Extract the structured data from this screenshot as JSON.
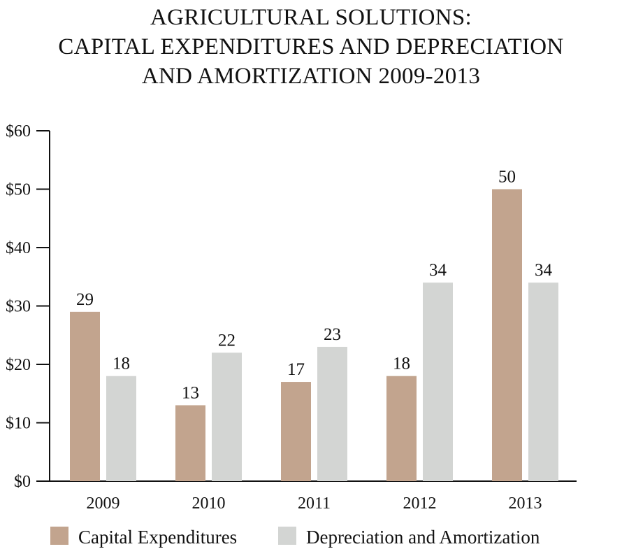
{
  "chart_data": {
    "type": "bar",
    "title": [
      "AGRICULTURAL SOLUTIONS:",
      "CAPITAL EXPENDITURES AND DEPRECIATION",
      "AND AMORTIZATION 2009-2013"
    ],
    "categories": [
      "2009",
      "2010",
      "2011",
      "2012",
      "2013"
    ],
    "series": [
      {
        "name": "Capital Expenditures",
        "values": [
          29,
          13,
          17,
          18,
          50
        ],
        "color": "#c2a48e"
      },
      {
        "name": "Depreciation and Amortization",
        "values": [
          18,
          22,
          23,
          34,
          34
        ],
        "color": "#d3d5d3"
      }
    ],
    "ylim": [
      0,
      60
    ],
    "yticks": [
      0,
      10,
      20,
      30,
      40,
      50,
      60
    ],
    "ytick_labels": [
      "$0",
      "$10",
      "$20",
      "$30",
      "$40",
      "$50",
      "$60"
    ],
    "xlabel": "",
    "ylabel": "",
    "grid": false,
    "legend": "bottom",
    "data_labels": true
  }
}
